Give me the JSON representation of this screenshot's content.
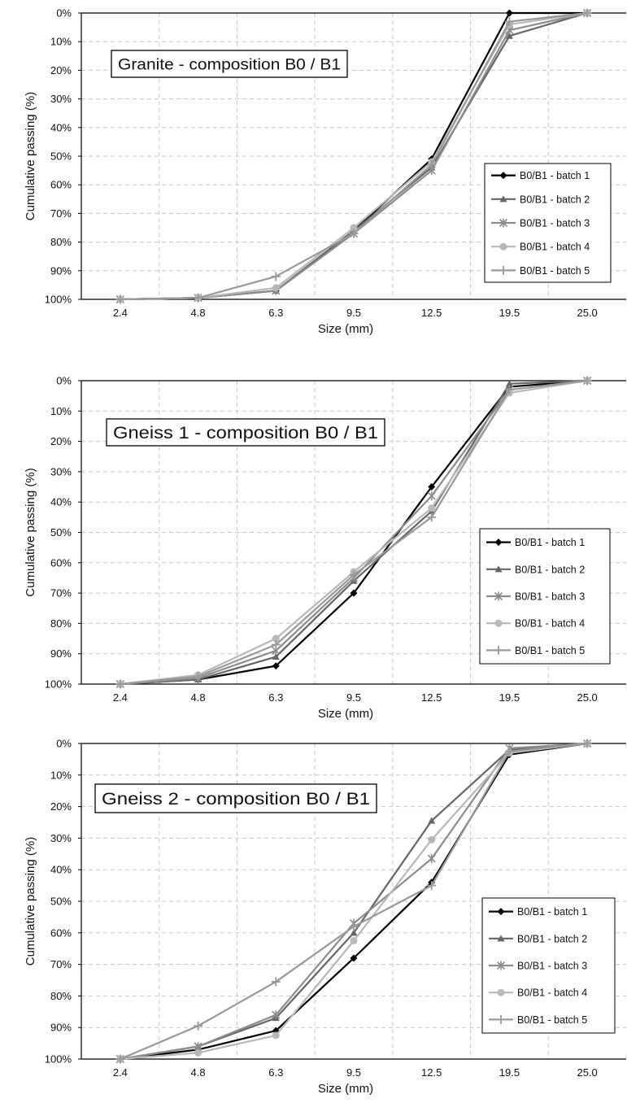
{
  "chart_data": [
    {
      "type": "line",
      "title": "Granite - composition B0 / B1",
      "xlabel": "Size (mm)",
      "ylabel": "Cumulative passing (%)",
      "categories": [
        "2.4",
        "4.8",
        "6.3",
        "9.5",
        "12.5",
        "19.5",
        "25.0"
      ],
      "y_ticks": [
        "0%",
        "10%",
        "20%",
        "30%",
        "40%",
        "50%",
        "60%",
        "70%",
        "80%",
        "90%",
        "100%"
      ],
      "ylim": [
        0,
        100
      ],
      "y_inverted": true,
      "grid": true,
      "legend_position": "right",
      "series": [
        {
          "name": "B0/B1 - batch 1",
          "marker": "diamond",
          "color": "#000000",
          "values": [
            100,
            99.5,
            97,
            76,
            51,
            0,
            0
          ]
        },
        {
          "name": "B0/B1 - batch 2",
          "marker": "triangle",
          "color": "#666666",
          "values": [
            100,
            99.5,
            97,
            76,
            54,
            8,
            0
          ]
        },
        {
          "name": "B0/B1 - batch 3",
          "marker": "star",
          "color": "#8c8c8c",
          "values": [
            100,
            99.5,
            97,
            77,
            55,
            6,
            0
          ]
        },
        {
          "name": "B0/B1 - batch 4",
          "marker": "circle",
          "color": "#b8b8b8",
          "values": [
            100,
            99.5,
            96,
            75,
            52,
            4,
            0
          ]
        },
        {
          "name": "B0/B1 - batch 5",
          "marker": "plus",
          "color": "#999999",
          "values": [
            100,
            99.5,
            92,
            77,
            53,
            3,
            0
          ]
        }
      ]
    },
    {
      "type": "line",
      "title": "Gneiss 1 - composition B0 / B1",
      "xlabel": "Size (mm)",
      "ylabel": "Cumulative passing (%)",
      "categories": [
        "2.4",
        "4.8",
        "6.3",
        "9.5",
        "12.5",
        "19.5",
        "25.0"
      ],
      "y_ticks": [
        "0%",
        "10%",
        "20%",
        "30%",
        "40%",
        "50%",
        "60%",
        "70%",
        "80%",
        "90%",
        "100%"
      ],
      "ylim": [
        0,
        100
      ],
      "y_inverted": true,
      "grid": true,
      "legend_position": "right",
      "series": [
        {
          "name": "B0/B1 - batch 1",
          "marker": "diamond",
          "color": "#000000",
          "values": [
            100,
            98.5,
            94,
            70,
            35,
            2,
            0
          ]
        },
        {
          "name": "B0/B1 - batch 2",
          "marker": "triangle",
          "color": "#666666",
          "values": [
            100,
            98.5,
            91,
            66,
            43,
            1,
            0
          ]
        },
        {
          "name": "B0/B1 - batch 3",
          "marker": "star",
          "color": "#8c8c8c",
          "values": [
            100,
            98,
            89,
            65,
            38,
            3,
            0
          ]
        },
        {
          "name": "B0/B1 - batch 4",
          "marker": "circle",
          "color": "#b8b8b8",
          "values": [
            100,
            97,
            85,
            63,
            42,
            4,
            0
          ]
        },
        {
          "name": "B0/B1 - batch 5",
          "marker": "plus",
          "color": "#999999",
          "values": [
            100,
            97.5,
            87,
            64,
            45,
            3,
            0
          ]
        }
      ]
    },
    {
      "type": "line",
      "title": "Gneiss 2 - composition B0 / B1",
      "xlabel": "Size (mm)",
      "ylabel": "Cumulative passing (%)",
      "categories": [
        "2.4",
        "4.8",
        "6.3",
        "9.5",
        "12.5",
        "19.5",
        "25.0"
      ],
      "y_ticks": [
        "0%",
        "10%",
        "20%",
        "30%",
        "40%",
        "50%",
        "60%",
        "70%",
        "80%",
        "90%",
        "100%"
      ],
      "ylim": [
        0,
        100
      ],
      "y_inverted": true,
      "grid": true,
      "legend_position": "right",
      "series": [
        {
          "name": "B0/B1 - batch 1",
          "marker": "diamond",
          "color": "#000000",
          "values": [
            100,
            97,
            91,
            68,
            44,
            3.5,
            0
          ]
        },
        {
          "name": "B0/B1 - batch 2",
          "marker": "triangle",
          "color": "#666666",
          "values": [
            100,
            96,
            87,
            60,
            24.5,
            2,
            0
          ]
        },
        {
          "name": "B0/B1 - batch 3",
          "marker": "star",
          "color": "#8c8c8c",
          "values": [
            100,
            96,
            86,
            57,
            36.5,
            1.5,
            0
          ]
        },
        {
          "name": "B0/B1 - batch 4",
          "marker": "circle",
          "color": "#b8b8b8",
          "values": [
            100,
            98,
            92.5,
            62.5,
            30.5,
            3,
            0
          ]
        },
        {
          "name": "B0/B1 - batch 5",
          "marker": "plus",
          "color": "#999999",
          "values": [
            100,
            89.5,
            75.5,
            58,
            45,
            2.5,
            0
          ]
        }
      ]
    }
  ]
}
